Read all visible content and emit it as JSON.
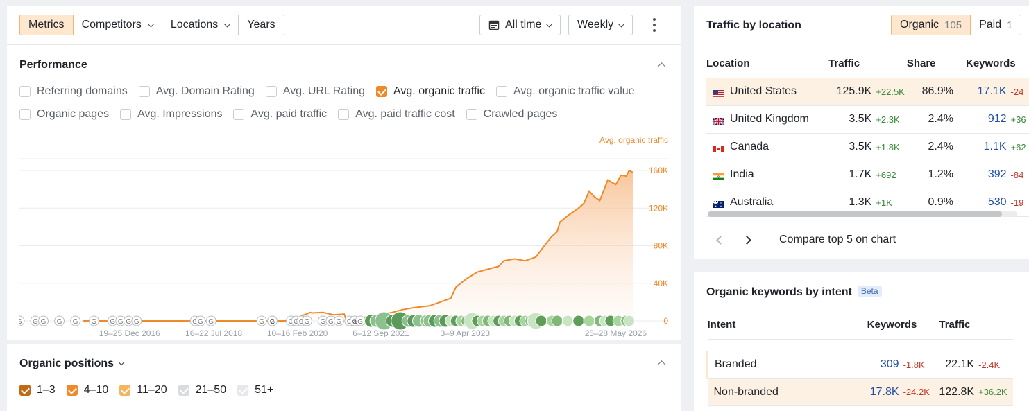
{
  "toolbar": {
    "tabs": [
      {
        "label": "Metrics",
        "active": true,
        "dropdown": false
      },
      {
        "label": "Competitors",
        "active": false,
        "dropdown": true
      },
      {
        "label": "Locations",
        "active": false,
        "dropdown": true
      },
      {
        "label": "Years",
        "active": false,
        "dropdown": false
      }
    ],
    "period_label": "All time",
    "interval_label": "Weekly",
    "calendar_icon": "calendar-icon",
    "more_icon": "more-vertical-icon"
  },
  "performance": {
    "title": "Performance",
    "metrics_row1": [
      {
        "label": "Referring domains",
        "checked": false
      },
      {
        "label": "Avg. Domain Rating",
        "checked": false
      },
      {
        "label": "Avg. URL Rating",
        "checked": false
      },
      {
        "label": "Avg. organic traffic",
        "checked": true
      },
      {
        "label": "Avg. organic traffic value",
        "checked": false
      }
    ],
    "metrics_row2": [
      {
        "label": "Organic pages",
        "checked": false
      },
      {
        "label": "Avg. Impressions",
        "checked": false
      },
      {
        "label": "Avg. paid traffic",
        "checked": false
      },
      {
        "label": "Avg. paid traffic cost",
        "checked": false
      },
      {
        "label": "Crawled pages",
        "checked": false
      }
    ]
  },
  "chart_data": {
    "type": "area",
    "series": [
      {
        "name": "Avg. organic traffic",
        "color": "#ef8a2a"
      }
    ],
    "x_range": [
      2014.9,
      2026.42
    ],
    "x": [
      2016.1,
      2016.5,
      2017,
      2017.5,
      2018,
      2018.5,
      2019,
      2019.5,
      2020.0,
      2020.04,
      2020.1,
      2020.2,
      2020.3,
      2020.36,
      2020.4,
      2020.6,
      2020.8,
      2021.0,
      2021.04,
      2021.2,
      2021.4,
      2021.6,
      2021.9,
      2022.1,
      2022.3,
      2022.6,
      2022.8,
      2023.0,
      2023.1,
      2023.3,
      2023.5,
      2023.7,
      2023.9,
      2024.0,
      2024.2,
      2024.4,
      2024.6,
      2024.8,
      2024.9,
      2025.0,
      2025.05,
      2025.2,
      2025.4,
      2025.5,
      2025.6,
      2025.7,
      2025.8,
      2025.95,
      2026.1,
      2026.2,
      2026.3,
      2026.35,
      2026.42
    ],
    "y": [
      0,
      0,
      0,
      0,
      0,
      0,
      0,
      0,
      0,
      0,
      0,
      5500,
      7500,
      9000,
      8500,
      9000,
      6500,
      7200,
      0,
      2000,
      4000,
      6000,
      9000,
      12000,
      14000,
      16000,
      20000,
      24000,
      36000,
      45000,
      52000,
      55000,
      58000,
      64000,
      66000,
      64000,
      68000,
      83000,
      90000,
      95000,
      105000,
      112000,
      120000,
      125000,
      138000,
      132000,
      128000,
      150000,
      145000,
      155000,
      154000,
      160000,
      158000
    ],
    "ylim": [
      0,
      160000
    ],
    "y_ticks": [
      {
        "value": 0,
        "label": "0"
      },
      {
        "value": 40000,
        "label": "40K"
      },
      {
        "value": 80000,
        "label": "80K"
      },
      {
        "value": 120000,
        "label": "120K"
      },
      {
        "value": 160000,
        "label": "160K"
      }
    ],
    "x_tick_labels": [
      {
        "label": "19–25 Dec 2016",
        "x": 2016.97
      },
      {
        "label": "16–22 Jul 2018",
        "x": 2018.55
      },
      {
        "label": "10–16 Feb 2020",
        "x": 2020.12
      },
      {
        "label": "6–12 Sep 2021",
        "x": 2021.69
      },
      {
        "label": "3–9 Apr 2023",
        "x": 2023.27
      },
      {
        "label": "25–28 May 2026",
        "x": 2026.1
      }
    ],
    "legend": "Avg. organic traffic",
    "google_update_markers": [
      2014.9,
      2015.2,
      2015.35,
      2015.65,
      2015.95,
      2016.3,
      2016.65,
      2016.8,
      2016.95,
      2017.1,
      2018.2,
      2018.3,
      2018.5,
      2019.45,
      2019.65,
      2020.0,
      2020.1,
      2020.2,
      2020.3,
      2020.6,
      2020.75,
      2020.9,
      2021.1,
      2021.2,
      2021.3,
      2021.5,
      2021.6,
      2021.75,
      2021.9,
      2022.05,
      2022.2,
      2022.3,
      2022.4,
      2022.55,
      2022.6,
      2022.7,
      2022.8,
      2022.9,
      2023.0,
      2023.1,
      2023.2,
      2023.3,
      2023.4,
      2023.5,
      2023.6,
      2023.7,
      2023.8,
      2023.9,
      2024.0,
      2024.1,
      2024.2,
      2024.3,
      2024.4,
      2024.5,
      2024.6,
      2024.7,
      2024.9,
      2025.0,
      2025.2,
      2025.4,
      2025.6,
      2025.8,
      2025.9,
      2026.0,
      2026.15,
      2026.3,
      2026.35
    ],
    "marker_labels": [
      {
        "x": 2019.65,
        "label": "2"
      },
      {
        "x": 2021.2,
        "label": "a"
      }
    ]
  },
  "organic_positions": {
    "title": "Organic positions",
    "ranges": [
      {
        "label": "1–3",
        "checked": true,
        "color": "#c06a14"
      },
      {
        "label": "4–10",
        "checked": true,
        "color": "#ef8a2a"
      },
      {
        "label": "11–20",
        "checked": true,
        "color": "#f5b560"
      },
      {
        "label": "21–50",
        "checked": true,
        "color": "#d8dbe0"
      },
      {
        "label": "51+",
        "checked": true,
        "color": "#e6e8eb"
      }
    ]
  },
  "traffic_by_location": {
    "title": "Traffic by location",
    "toggle": [
      {
        "label": "Organic",
        "count": "105",
        "active": true
      },
      {
        "label": "Paid",
        "count": "1",
        "active": false
      }
    ],
    "columns": [
      "Location",
      "Traffic",
      "Share",
      "Keywords"
    ],
    "rows": [
      {
        "flag": "us-flag-icon",
        "location": "United States",
        "traffic": "125.9K",
        "traffic_delta": "+22.5K",
        "share": "86.9%",
        "keywords": "17.1K",
        "keywords_delta": "-24",
        "highlight": true
      },
      {
        "flag": "uk-flag-icon",
        "location": "United Kingdom",
        "traffic": "3.5K",
        "traffic_delta": "+2.3K",
        "share": "2.4%",
        "keywords": "912",
        "keywords_delta": "+36",
        "highlight": false
      },
      {
        "flag": "ca-flag-icon",
        "location": "Canada",
        "traffic": "3.5K",
        "traffic_delta": "+1.8K",
        "share": "2.4%",
        "keywords": "1.1K",
        "keywords_delta": "+62",
        "highlight": false
      },
      {
        "flag": "in-flag-icon",
        "location": "India",
        "traffic": "1.7K",
        "traffic_delta": "+692",
        "share": "1.2%",
        "keywords": "392",
        "keywords_delta": "-84",
        "highlight": false
      },
      {
        "flag": "au-flag-icon",
        "location": "Australia",
        "traffic": "1.3K",
        "traffic_delta": "+1K",
        "share": "0.9%",
        "keywords": "530",
        "keywords_delta": "-19",
        "highlight": false
      }
    ],
    "compare_label": "Compare top 5 on chart"
  },
  "keywords_by_intent": {
    "title": "Organic keywords by intent",
    "badge": "Beta",
    "columns": [
      "Intent",
      "Keywords",
      "Traffic"
    ],
    "rows": [
      {
        "intent": "Branded",
        "keywords": "309",
        "keywords_delta": "-1.8K",
        "traffic": "22.1K",
        "traffic_delta": "-2.4K"
      },
      {
        "intent": "Non-branded",
        "keywords": "17.8K",
        "keywords_delta": "-24.2K",
        "traffic": "122.8K",
        "traffic_delta": "+36.2K"
      }
    ]
  }
}
